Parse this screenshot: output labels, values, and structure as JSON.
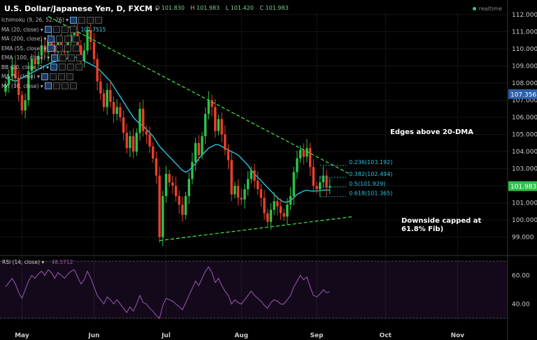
{
  "header": {
    "symbol": "U.S. Dollar/Japanese Yen, D, FXCM",
    "ohlc": {
      "o_label": "O",
      "o": "101.830",
      "h_label": "H",
      "h": "101.983",
      "l_label": "L",
      "l": "101.420",
      "c_label": "C",
      "c": "101.983"
    },
    "realtime": "realtime"
  },
  "studies": [
    {
      "label": "Ichimoku (9, 26, 52, 26)",
      "value": ""
    },
    {
      "label": "MA (20, close)",
      "value": "101.7515"
    },
    {
      "label": "MA (200, close)",
      "value": ""
    },
    {
      "label": "EMA (55, close)",
      "value": ""
    },
    {
      "label": "EMA (100, close)",
      "value": ""
    },
    {
      "label": "BB (20, close, 2)",
      "value": ""
    },
    {
      "label": "MA (5, close)",
      "value": ""
    },
    {
      "label": "MA (10, close)",
      "value": ""
    }
  ],
  "rsi_panel": {
    "label": "RSI (14, close)",
    "value": "48.5712"
  },
  "annotations": {
    "dma": "Edges above 20-DMA",
    "fib_line1": "Downside capped at",
    "fib_line2": "61.8% Fib)"
  },
  "colors": {
    "up": "#2ec24a",
    "down": "#e8402c",
    "ma": "#2bc3e0",
    "trend": "#3ddc3d",
    "rsi": "#9b59b6",
    "fib": "#2bc3e0",
    "axis_text": "#cccccc",
    "grid": "#151515"
  },
  "chart_data": {
    "type": "candlestick",
    "price_axis": {
      "min": 98.5,
      "max": 112.2,
      "ticks": [
        99.0,
        100.0,
        101.0,
        102.0,
        103.0,
        104.0,
        105.0,
        106.0,
        107.0,
        108.0,
        109.0,
        110.0,
        111.0,
        112.0
      ]
    },
    "rsi_axis": {
      "min": 28,
      "max": 72,
      "ticks": [
        40.0,
        60.0
      ]
    },
    "x_labels": [
      {
        "label": "May",
        "bar": 5
      },
      {
        "label": "Jun",
        "bar": 27
      },
      {
        "label": "Jul",
        "bar": 49
      },
      {
        "label": "Aug",
        "bar": 72
      },
      {
        "label": "Sep",
        "bar": 95
      },
      {
        "label": "Oct",
        "bar": 116
      },
      {
        "label": "Nov",
        "bar": 138
      }
    ],
    "last_price": {
      "label": "101.983",
      "value": 101.983,
      "color": "#2ec24a"
    },
    "ma_label": {
      "label": "107.356",
      "value": 107.356
    },
    "fib_levels": [
      {
        "label": "0.236(103.192)",
        "value": 103.192
      },
      {
        "label": "0.382(102.494)",
        "value": 102.494
      },
      {
        "label": "0.5(101.929)",
        "value": 101.929
      },
      {
        "label": "0.618(101.365)",
        "value": 101.365
      }
    ],
    "trendlines": [
      {
        "name": "resistance",
        "from": {
          "bar": 13,
          "value": 111.9
        },
        "to": {
          "bar": 105,
          "value": 102.7
        }
      },
      {
        "name": "support",
        "from": {
          "bar": 47,
          "value": 98.8
        },
        "to": {
          "bar": 106,
          "value": 100.2
        }
      }
    ],
    "closes": [
      107.9,
      108.4,
      109.0,
      108.3,
      107.3,
      106.4,
      107.0,
      108.7,
      109.4,
      109.1,
      109.6,
      110.2,
      109.8,
      110.5,
      110.2,
      109.8,
      110.4,
      109.9,
      109.8,
      110.4,
      110.8,
      111.0,
      110.2,
      109.3,
      109.9,
      111.1,
      110.4,
      109.4,
      108.1,
      107.4,
      106.6,
      107.6,
      106.9,
      106.2,
      106.6,
      106.0,
      105.1,
      104.2,
      104.9,
      104.0,
      105.1,
      106.5,
      105.2,
      105.0,
      104.3,
      103.6,
      102.6,
      99.0,
      101.4,
      102.7,
      102.2,
      102.0,
      101.4,
      100.9,
      100.3,
      101.4,
      102.4,
      103.4,
      104.5,
      103.8,
      104.9,
      106.2,
      107.0,
      106.6,
      105.2,
      105.9,
      105.0,
      104.1,
      103.5,
      101.5,
      102.0,
      101.3,
      101.2,
      101.8,
      102.4,
      102.9,
      102.3,
      101.8,
      101.3,
      100.4,
      99.9,
      100.6,
      101.1,
      100.8,
      100.4,
      100.2,
      100.9,
      101.4,
      102.8,
      103.6,
      104.1,
      103.7,
      104.2,
      103.1,
      102.0,
      101.8,
      102.2,
      102.6,
      101.9,
      101.98
    ],
    "ma20": [
      108.3,
      108.2,
      108.2,
      108.1,
      108.2,
      108.3,
      108.4,
      108.5,
      108.6,
      108.7,
      108.8,
      108.9,
      109.0,
      109.1,
      109.2,
      109.25,
      109.3,
      109.35,
      109.4,
      109.45,
      109.5,
      109.5,
      109.5,
      109.4,
      109.3,
      109.2,
      109.1,
      109.0,
      108.9,
      108.7,
      108.5,
      108.3,
      108.1,
      107.8,
      107.5,
      107.2,
      106.9,
      106.6,
      106.3,
      106.0,
      105.8,
      105.6,
      105.5,
      105.3,
      105.1,
      104.9,
      104.6,
      104.3,
      104.1,
      103.9,
      103.7,
      103.5,
      103.3,
      103.1,
      102.9,
      102.8,
      102.9,
      103.1,
      103.3,
      103.6,
      103.8,
      104.0,
      104.2,
      104.3,
      104.4,
      104.4,
      104.3,
      104.2,
      104.1,
      104.0,
      103.9,
      103.8,
      103.6,
      103.4,
      103.2,
      102.9,
      102.7,
      102.5,
      102.3,
      102.1,
      101.9,
      101.7,
      101.5,
      101.3,
      101.15,
      101.05,
      101.05,
      101.15,
      101.3,
      101.5,
      101.6,
      101.7,
      101.75,
      101.7,
      101.7,
      101.7,
      101.72,
      101.75,
      101.75,
      101.75
    ],
    "rsi": [
      52,
      55,
      58,
      54,
      48,
      44,
      50,
      56,
      60,
      58,
      61,
      63,
      60,
      64,
      62,
      58,
      62,
      60,
      58,
      61,
      63,
      64,
      59,
      54,
      57,
      63,
      58,
      52,
      46,
      43,
      40,
      45,
      43,
      40,
      43,
      40,
      37,
      34,
      38,
      35,
      40,
      46,
      41,
      40,
      37,
      35,
      32,
      30,
      39,
      44,
      43,
      42,
      40,
      38,
      36,
      41,
      46,
      51,
      56,
      53,
      58,
      63,
      66,
      62,
      55,
      58,
      53,
      49,
      46,
      40,
      43,
      41,
      40,
      43,
      46,
      49,
      46,
      44,
      42,
      39,
      37,
      41,
      43,
      42,
      40,
      40,
      43,
      46,
      52,
      56,
      60,
      57,
      59,
      52,
      46,
      45,
      47,
      50,
      48,
      48.57
    ]
  }
}
